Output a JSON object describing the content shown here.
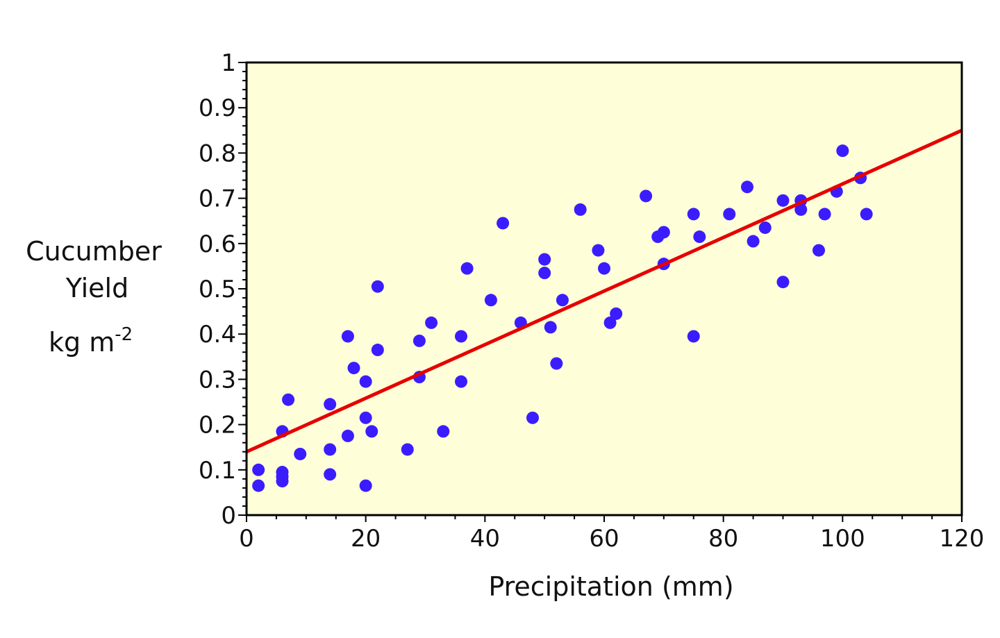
{
  "chart_data": {
    "type": "scatter",
    "title": "",
    "xlabel": "Precipitation (mm)",
    "ylabel_lines": [
      "Cucumber",
      "Yield",
      "kg m",
      "-2"
    ],
    "xlim": [
      0,
      120
    ],
    "ylim": [
      0,
      1
    ],
    "x_ticks": [
      "0",
      "20",
      "40",
      "60",
      "80",
      "100",
      "120"
    ],
    "y_ticks": [
      "0",
      "0.1",
      "0.2",
      "0.3",
      "0.4",
      "0.5",
      "0.6",
      "0.7",
      "0.8",
      "0.9",
      "1"
    ],
    "grid": false,
    "colors": {
      "plot_background": "#fefed8",
      "points": "#3b1cff",
      "trend_line": "#e60000",
      "axis": "#000000"
    },
    "trend_line": {
      "x": [
        0,
        120
      ],
      "y": [
        0.14,
        0.85
      ]
    },
    "points": [
      {
        "x": 2,
        "y": 0.1
      },
      {
        "x": 2,
        "y": 0.065
      },
      {
        "x": 6,
        "y": 0.095
      },
      {
        "x": 6,
        "y": 0.085
      },
      {
        "x": 6,
        "y": 0.075
      },
      {
        "x": 6,
        "y": 0.185
      },
      {
        "x": 7,
        "y": 0.255
      },
      {
        "x": 9,
        "y": 0.135
      },
      {
        "x": 14,
        "y": 0.245
      },
      {
        "x": 14,
        "y": 0.145
      },
      {
        "x": 14,
        "y": 0.09
      },
      {
        "x": 17,
        "y": 0.395
      },
      {
        "x": 17,
        "y": 0.175
      },
      {
        "x": 18,
        "y": 0.325
      },
      {
        "x": 20,
        "y": 0.295
      },
      {
        "x": 20,
        "y": 0.215
      },
      {
        "x": 20,
        "y": 0.065
      },
      {
        "x": 21,
        "y": 0.185
      },
      {
        "x": 22,
        "y": 0.505
      },
      {
        "x": 22,
        "y": 0.365
      },
      {
        "x": 27,
        "y": 0.145
      },
      {
        "x": 29,
        "y": 0.385
      },
      {
        "x": 29,
        "y": 0.305
      },
      {
        "x": 31,
        "y": 0.425
      },
      {
        "x": 33,
        "y": 0.185
      },
      {
        "x": 36,
        "y": 0.395
      },
      {
        "x": 36,
        "y": 0.295
      },
      {
        "x": 37,
        "y": 0.545
      },
      {
        "x": 41,
        "y": 0.475
      },
      {
        "x": 43,
        "y": 0.645
      },
      {
        "x": 46,
        "y": 0.425
      },
      {
        "x": 48,
        "y": 0.215
      },
      {
        "x": 50,
        "y": 0.565
      },
      {
        "x": 50,
        "y": 0.535
      },
      {
        "x": 51,
        "y": 0.415
      },
      {
        "x": 52,
        "y": 0.335
      },
      {
        "x": 53,
        "y": 0.475
      },
      {
        "x": 56,
        "y": 0.675
      },
      {
        "x": 59,
        "y": 0.585
      },
      {
        "x": 60,
        "y": 0.545
      },
      {
        "x": 61,
        "y": 0.425
      },
      {
        "x": 62,
        "y": 0.445
      },
      {
        "x": 67,
        "y": 0.705
      },
      {
        "x": 69,
        "y": 0.615
      },
      {
        "x": 70,
        "y": 0.625
      },
      {
        "x": 70,
        "y": 0.555
      },
      {
        "x": 75,
        "y": 0.665
      },
      {
        "x": 75,
        "y": 0.395
      },
      {
        "x": 76,
        "y": 0.615
      },
      {
        "x": 81,
        "y": 0.665
      },
      {
        "x": 84,
        "y": 0.725
      },
      {
        "x": 85,
        "y": 0.605
      },
      {
        "x": 87,
        "y": 0.635
      },
      {
        "x": 90,
        "y": 0.695
      },
      {
        "x": 90,
        "y": 0.515
      },
      {
        "x": 93,
        "y": 0.695
      },
      {
        "x": 93,
        "y": 0.675
      },
      {
        "x": 96,
        "y": 0.585
      },
      {
        "x": 97,
        "y": 0.665
      },
      {
        "x": 99,
        "y": 0.715
      },
      {
        "x": 100,
        "y": 0.805
      },
      {
        "x": 103,
        "y": 0.745
      },
      {
        "x": 104,
        "y": 0.665
      }
    ]
  }
}
